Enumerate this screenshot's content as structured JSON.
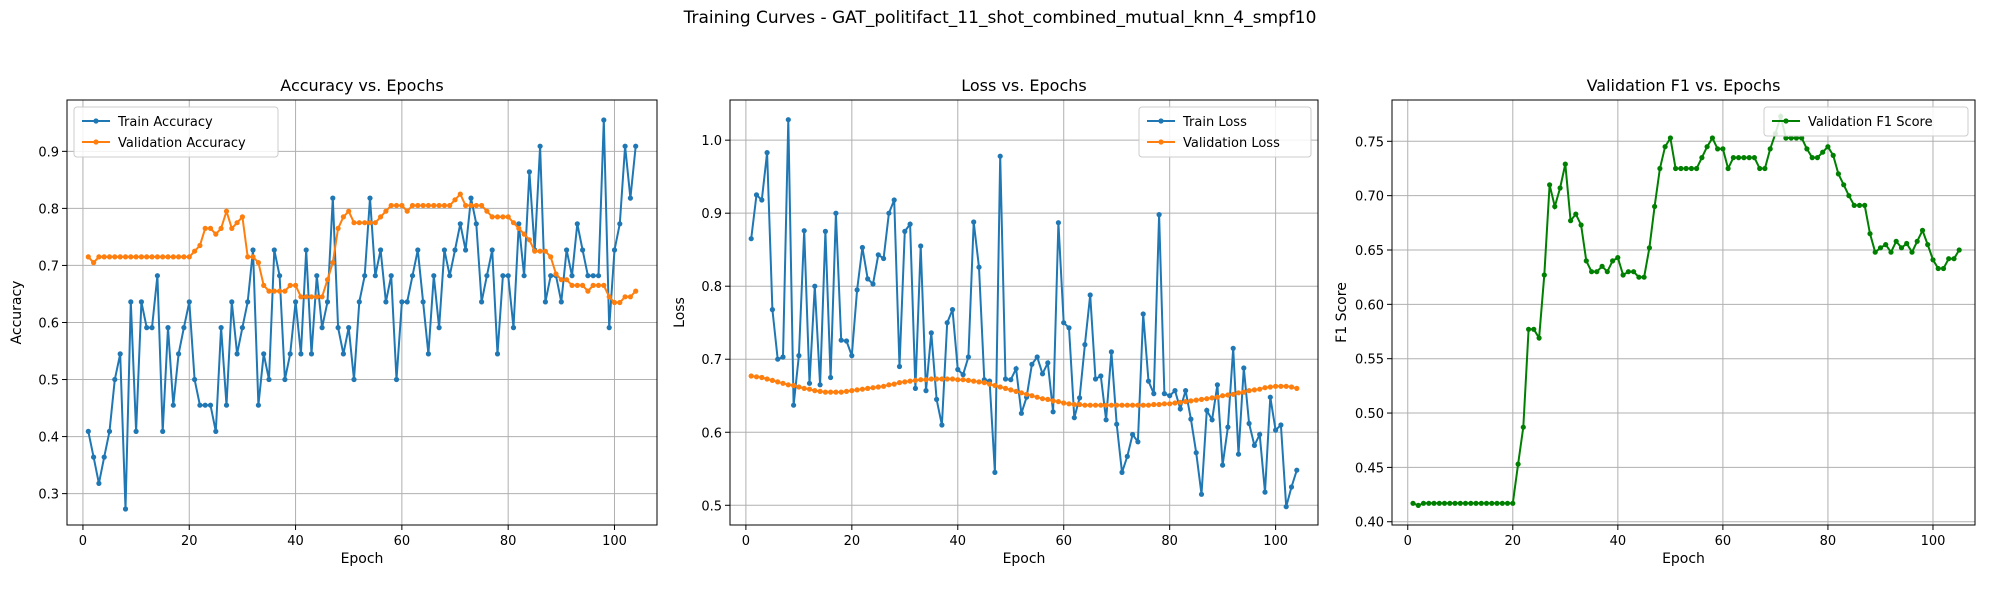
{
  "figure": {
    "suptitle": "Training Curves - GAT_politifact_11_shot_combined_mutual_knn_4_smpf10"
  },
  "colors": {
    "blue": "#1f77b4",
    "orange": "#ff7f0e",
    "green": "#008000",
    "grid": "#b0b0b0"
  },
  "chart_data": [
    {
      "type": "line",
      "title": "Accuracy vs. Epochs",
      "xlabel": "Epoch",
      "ylabel": "Accuracy",
      "xlim": [
        -3,
        108
      ],
      "ylim": [
        0.245,
        0.99
      ],
      "xticks": [
        0,
        20,
        40,
        60,
        80,
        100
      ],
      "yticks": [
        0.3,
        0.4,
        0.5,
        0.6,
        0.7,
        0.8,
        0.9
      ],
      "grid": true,
      "legend": "upper-left",
      "series": [
        {
          "name": "Train Accuracy",
          "color": "#1f77b4",
          "values": [
            0.409,
            0.364,
            0.318,
            0.364,
            0.409,
            0.5,
            0.545,
            0.273,
            0.636,
            0.409,
            0.636,
            0.591,
            0.591,
            0.682,
            0.409,
            0.591,
            0.455,
            0.545,
            0.591,
            0.636,
            0.5,
            0.455,
            0.455,
            0.455,
            0.409,
            0.591,
            0.455,
            0.636,
            0.545,
            0.591,
            0.636,
            0.727,
            0.455,
            0.545,
            0.5,
            0.727,
            0.682,
            0.5,
            0.545,
            0.636,
            0.545,
            0.727,
            0.545,
            0.682,
            0.591,
            0.636,
            0.818,
            0.591,
            0.545,
            0.591,
            0.5,
            0.636,
            0.682,
            0.818,
            0.682,
            0.727,
            0.636,
            0.682,
            0.5,
            0.636,
            0.636,
            0.682,
            0.727,
            0.636,
            0.545,
            0.682,
            0.591,
            0.727,
            0.682,
            0.727,
            0.773,
            0.727,
            0.818,
            0.773,
            0.636,
            0.682,
            0.727,
            0.545,
            0.682,
            0.682,
            0.591,
            0.773,
            0.682,
            0.864,
            0.727,
            0.909,
            0.636,
            0.682,
            0.682,
            0.636,
            0.727,
            0.682,
            0.773,
            0.727,
            0.682,
            0.682,
            0.682,
            0.955,
            0.591,
            0.727,
            0.773,
            0.909,
            0.818,
            0.909
          ]
        },
        {
          "name": "Validation Accuracy",
          "color": "#ff7f0e",
          "values": [
            0.715,
            0.705,
            0.715,
            0.715,
            0.715,
            0.715,
            0.715,
            0.715,
            0.715,
            0.715,
            0.715,
            0.715,
            0.715,
            0.715,
            0.715,
            0.715,
            0.715,
            0.715,
            0.715,
            0.715,
            0.725,
            0.735,
            0.765,
            0.765,
            0.755,
            0.765,
            0.795,
            0.765,
            0.775,
            0.785,
            0.715,
            0.715,
            0.705,
            0.665,
            0.655,
            0.655,
            0.655,
            0.655,
            0.665,
            0.665,
            0.645,
            0.645,
            0.645,
            0.645,
            0.645,
            0.675,
            0.705,
            0.765,
            0.785,
            0.795,
            0.775,
            0.775,
            0.775,
            0.775,
            0.775,
            0.785,
            0.795,
            0.805,
            0.805,
            0.805,
            0.795,
            0.805,
            0.805,
            0.805,
            0.805,
            0.805,
            0.805,
            0.805,
            0.805,
            0.815,
            0.825,
            0.805,
            0.805,
            0.805,
            0.805,
            0.795,
            0.785,
            0.785,
            0.785,
            0.785,
            0.775,
            0.765,
            0.755,
            0.745,
            0.725,
            0.725,
            0.725,
            0.715,
            0.685,
            0.675,
            0.675,
            0.665,
            0.665,
            0.665,
            0.655,
            0.665,
            0.665,
            0.665,
            0.645,
            0.635,
            0.635,
            0.645,
            0.645,
            0.655
          ]
        }
      ]
    },
    {
      "type": "line",
      "title": "Loss vs. Epochs",
      "xlabel": "Epoch",
      "ylabel": "Loss",
      "xlim": [
        -3,
        108
      ],
      "ylim": [
        0.473,
        1.055
      ],
      "xticks": [
        0,
        20,
        40,
        60,
        80,
        100
      ],
      "yticks": [
        0.5,
        0.6,
        0.7,
        0.8,
        0.9,
        1.0
      ],
      "grid": true,
      "legend": "upper-right",
      "series": [
        {
          "name": "Train Loss",
          "color": "#1f77b4",
          "values": [
            0.865,
            0.925,
            0.918,
            0.983,
            0.768,
            0.7,
            0.703,
            1.028,
            0.637,
            0.705,
            0.876,
            0.667,
            0.8,
            0.665,
            0.875,
            0.675,
            0.9,
            0.726,
            0.725,
            0.705,
            0.795,
            0.853,
            0.81,
            0.803,
            0.843,
            0.838,
            0.9,
            0.918,
            0.69,
            0.875,
            0.885,
            0.66,
            0.855,
            0.657,
            0.736,
            0.645,
            0.61,
            0.75,
            0.768,
            0.686,
            0.679,
            0.703,
            0.888,
            0.826,
            0.672,
            0.67,
            0.545,
            0.978,
            0.673,
            0.672,
            0.687,
            0.626,
            0.648,
            0.693,
            0.703,
            0.68,
            0.695,
            0.628,
            0.887,
            0.75,
            0.743,
            0.62,
            0.647,
            0.72,
            0.788,
            0.673,
            0.677,
            0.617,
            0.71,
            0.611,
            0.545,
            0.567,
            0.597,
            0.587,
            0.762,
            0.67,
            0.653,
            0.898,
            0.653,
            0.65,
            0.657,
            0.632,
            0.657,
            0.618,
            0.572,
            0.515,
            0.63,
            0.617,
            0.665,
            0.555,
            0.607,
            0.715,
            0.57,
            0.688,
            0.612,
            0.582,
            0.597,
            0.518,
            0.648,
            0.603,
            0.61,
            0.498,
            0.525,
            0.548
          ]
        },
        {
          "name": "Validation Loss",
          "color": "#ff7f0e",
          "values": [
            0.677,
            0.676,
            0.675,
            0.673,
            0.671,
            0.669,
            0.667,
            0.665,
            0.664,
            0.662,
            0.66,
            0.659,
            0.657,
            0.656,
            0.655,
            0.655,
            0.655,
            0.655,
            0.656,
            0.657,
            0.658,
            0.659,
            0.66,
            0.661,
            0.662,
            0.663,
            0.665,
            0.666,
            0.668,
            0.669,
            0.67,
            0.671,
            0.672,
            0.672,
            0.673,
            0.673,
            0.673,
            0.673,
            0.673,
            0.672,
            0.672,
            0.671,
            0.67,
            0.669,
            0.668,
            0.666,
            0.664,
            0.662,
            0.66,
            0.658,
            0.656,
            0.654,
            0.652,
            0.65,
            0.648,
            0.646,
            0.645,
            0.643,
            0.642,
            0.64,
            0.639,
            0.638,
            0.638,
            0.637,
            0.637,
            0.637,
            0.637,
            0.637,
            0.637,
            0.637,
            0.637,
            0.637,
            0.637,
            0.637,
            0.637,
            0.637,
            0.638,
            0.638,
            0.639,
            0.639,
            0.64,
            0.641,
            0.642,
            0.643,
            0.644,
            0.645,
            0.646,
            0.647,
            0.648,
            0.65,
            0.651,
            0.652,
            0.654,
            0.655,
            0.657,
            0.658,
            0.659,
            0.661,
            0.662,
            0.663,
            0.663,
            0.663,
            0.662,
            0.66
          ]
        }
      ]
    },
    {
      "type": "line",
      "title": "Validation F1 vs. Epochs",
      "xlabel": "Epoch",
      "ylabel": "F1 Score",
      "xlim": [
        -3,
        108
      ],
      "ylim": [
        0.397,
        0.788
      ],
      "xticks": [
        0,
        20,
        40,
        60,
        80,
        100
      ],
      "yticks": [
        0.4,
        0.45,
        0.5,
        0.55,
        0.6,
        0.65,
        0.7,
        0.75
      ],
      "grid": true,
      "legend": "upper-right",
      "series": [
        {
          "name": "Validation F1 Score",
          "color": "#008000",
          "values": [
            0.417,
            0.415,
            0.417,
            0.417,
            0.417,
            0.417,
            0.417,
            0.417,
            0.417,
            0.417,
            0.417,
            0.417,
            0.417,
            0.417,
            0.417,
            0.417,
            0.417,
            0.417,
            0.417,
            0.417,
            0.453,
            0.487,
            0.577,
            0.577,
            0.569,
            0.627,
            0.71,
            0.69,
            0.707,
            0.729,
            0.677,
            0.683,
            0.673,
            0.64,
            0.63,
            0.63,
            0.635,
            0.63,
            0.64,
            0.643,
            0.627,
            0.63,
            0.63,
            0.625,
            0.625,
            0.652,
            0.69,
            0.725,
            0.745,
            0.753,
            0.725,
            0.725,
            0.725,
            0.725,
            0.725,
            0.735,
            0.745,
            0.753,
            0.743,
            0.743,
            0.725,
            0.735,
            0.735,
            0.735,
            0.735,
            0.735,
            0.725,
            0.725,
            0.743,
            0.757,
            0.773,
            0.753,
            0.753,
            0.753,
            0.753,
            0.743,
            0.735,
            0.735,
            0.74,
            0.745,
            0.737,
            0.72,
            0.71,
            0.7,
            0.691,
            0.691,
            0.691,
            0.665,
            0.648,
            0.652,
            0.655,
            0.648,
            0.658,
            0.652,
            0.656,
            0.648,
            0.658,
            0.668,
            0.655,
            0.641,
            0.633,
            0.633,
            0.642,
            0.642,
            0.65
          ]
        }
      ]
    }
  ]
}
